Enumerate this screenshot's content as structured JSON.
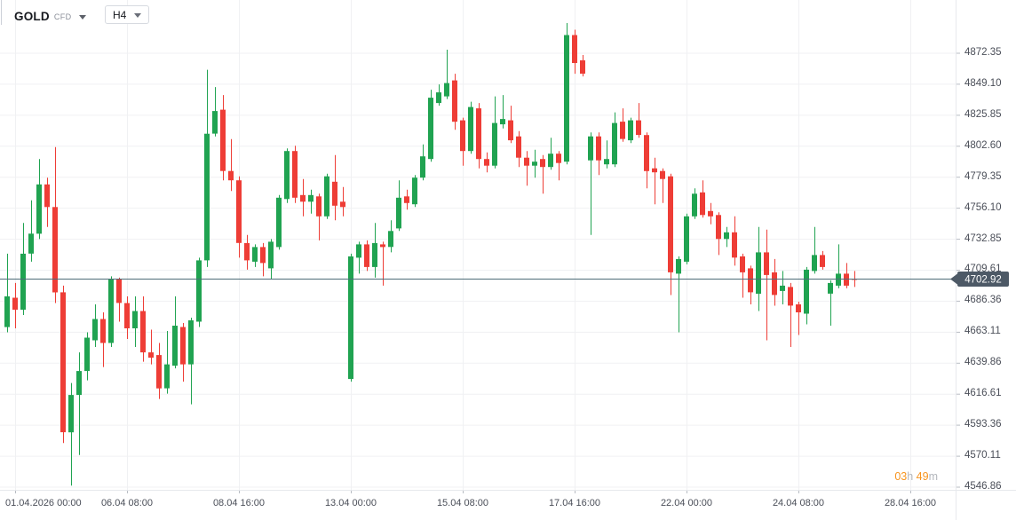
{
  "header": {
    "symbol": "GOLD",
    "instrument_type": "CFD",
    "timeframe": "H4"
  },
  "countdown": {
    "hours": "03",
    "hours_unit": "h",
    "minutes": "49",
    "minutes_unit": "m"
  },
  "colors": {
    "up": "#20a351",
    "down": "#ee3d36",
    "grid": "#f0f1f3",
    "axis_tick": "#b8bcc3",
    "separator": "#e7e9ed",
    "axis_text": "#4a4e58",
    "price_line": "#4d6b78",
    "badge_bg": "#4d5966",
    "badge_text": "#ffffff",
    "countdown_accent": "#f7941e",
    "countdown_unit": "#b4b7bd",
    "background": "#ffffff"
  },
  "price_axis": {
    "current_price_label": "4702.92"
  },
  "chart_data": {
    "type": "candlestick",
    "title": "GOLD CFD H4",
    "symbol": "GOLD",
    "timeframe": "H4",
    "ylim": [
      4546.86,
      4872.35
    ],
    "y_tick_step": 23.25,
    "grid": true,
    "y_ticks": [
      4872.35,
      4849.1,
      4825.85,
      4802.6,
      4779.35,
      4756.1,
      4732.85,
      4709.61,
      4686.36,
      4663.11,
      4639.86,
      4616.61,
      4593.36,
      4570.11,
      4546.86
    ],
    "x_labels": [
      {
        "text": "01.04.2026 00:00",
        "index": 1
      },
      {
        "text": "06.04 08:00",
        "index": 15
      },
      {
        "text": "08.04 16:00",
        "index": 29
      },
      {
        "text": "13.04 00:00",
        "index": 43
      },
      {
        "text": "15.04 08:00",
        "index": 57
      },
      {
        "text": "17.04 16:00",
        "index": 71
      },
      {
        "text": "22.04 00:00",
        "index": 85
      },
      {
        "text": "24.04 08:00",
        "index": 99
      },
      {
        "text": "28.04 16:00",
        "index": 113
      }
    ],
    "current_price": 4702.92,
    "columns": "[open, high, low, close]",
    "candles": [
      [
        4667,
        4722,
        4663,
        4690
      ],
      [
        4689,
        4700,
        4666,
        4680
      ],
      [
        4680,
        4745,
        4676,
        4722
      ],
      [
        4722,
        4762,
        4716,
        4737
      ],
      [
        4737,
        4793,
        4733,
        4774
      ],
      [
        4774,
        4779,
        4742,
        4757
      ],
      [
        4757,
        4802,
        4685,
        4693
      ],
      [
        4693,
        4698,
        4580,
        4588
      ],
      [
        4588,
        4625,
        4548,
        4616
      ],
      [
        4616,
        4648,
        4571,
        4634
      ],
      [
        4634,
        4663,
        4627,
        4659
      ],
      [
        4657,
        4684,
        4652,
        4673
      ],
      [
        4673,
        4678,
        4637,
        4655
      ],
      [
        4655,
        4705,
        4652,
        4703
      ],
      [
        4703,
        4704,
        4671,
        4685
      ],
      [
        4685,
        4690,
        4658,
        4666
      ],
      [
        4666,
        4690,
        4652,
        4679
      ],
      [
        4679,
        4690,
        4641,
        4648
      ],
      [
        4648,
        4665,
        4639,
        4644
      ],
      [
        4646,
        4655,
        4613,
        4621
      ],
      [
        4621,
        4664,
        4617,
        4639
      ],
      [
        4638,
        4690,
        4636,
        4668
      ],
      [
        4667,
        4670,
        4626,
        4639
      ],
      [
        4639,
        4674,
        4609,
        4672
      ],
      [
        4671,
        4719,
        4667,
        4717
      ],
      [
        4717,
        4860,
        4712,
        4812
      ],
      [
        4812,
        4847,
        4810,
        4829
      ],
      [
        4830,
        4841,
        4777,
        4784
      ],
      [
        4784,
        4808,
        4769,
        4777
      ],
      [
        4777,
        4780,
        4719,
        4730
      ],
      [
        4730,
        4736,
        4710,
        4717
      ],
      [
        4716,
        4729,
        4712,
        4727
      ],
      [
        4727,
        4730,
        4705,
        4715
      ],
      [
        4711,
        4733,
        4703,
        4731
      ],
      [
        4727,
        4766,
        4725,
        4764
      ],
      [
        4763,
        4801,
        4760,
        4799
      ],
      [
        4799,
        4803,
        4760,
        4764
      ],
      [
        4766,
        4778,
        4750,
        4761
      ],
      [
        4761,
        4770,
        4752,
        4766
      ],
      [
        4765,
        4767,
        4732,
        4750
      ],
      [
        4750,
        4782,
        4748,
        4780
      ],
      [
        4776,
        4796,
        4747,
        4758
      ],
      [
        4761,
        4772,
        4750,
        4757
      ],
      [
        4628,
        4722,
        4626,
        4720
      ],
      [
        4719,
        4731,
        4707,
        4729
      ],
      [
        4729,
        4732,
        4709,
        4712
      ],
      [
        4712,
        4745,
        4704,
        4730
      ],
      [
        4729,
        4731,
        4698,
        4727
      ],
      [
        4727,
        4747,
        4723,
        4739
      ],
      [
        4741,
        4777,
        4739,
        4764
      ],
      [
        4765,
        4770,
        4755,
        4760
      ],
      [
        4759,
        4781,
        4757,
        4779
      ],
      [
        4779,
        4804,
        4777,
        4795
      ],
      [
        4793,
        4845,
        4791,
        4839
      ],
      [
        4835,
        4849,
        4833,
        4843
      ],
      [
        4840,
        4875,
        4838,
        4850
      ],
      [
        4852,
        4857,
        4815,
        4821
      ],
      [
        4822,
        4824,
        4788,
        4799
      ],
      [
        4799,
        4836,
        4797,
        4832
      ],
      [
        4831,
        4835,
        4786,
        4793
      ],
      [
        4793,
        4798,
        4783,
        4788
      ],
      [
        4788,
        4840,
        4786,
        4820
      ],
      [
        4819,
        4841,
        4816,
        4823
      ],
      [
        4822,
        4833,
        4805,
        4807
      ],
      [
        4810,
        4814,
        4787,
        4794
      ],
      [
        4794,
        4799,
        4773,
        4788
      ],
      [
        4788,
        4800,
        4779,
        4791
      ],
      [
        4793,
        4796,
        4767,
        4787
      ],
      [
        4787,
        4809,
        4785,
        4797
      ],
      [
        4797,
        4799,
        4777,
        4790
      ],
      [
        4791,
        4895,
        4789,
        4886
      ],
      [
        4886,
        4890,
        4857,
        4865
      ],
      [
        4867,
        4871,
        4855,
        4857
      ],
      [
        4792,
        4813,
        4736,
        4810
      ],
      [
        4810,
        4813,
        4781,
        4792
      ],
      [
        4789,
        4807,
        4786,
        4793
      ],
      [
        4789,
        4828,
        4787,
        4820
      ],
      [
        4821,
        4831,
        4806,
        4808
      ],
      [
        4807,
        4824,
        4805,
        4822
      ],
      [
        4822,
        4835,
        4809,
        4811
      ],
      [
        4811,
        4813,
        4771,
        4784
      ],
      [
        4786,
        4794,
        4759,
        4783
      ],
      [
        4784,
        4786,
        4760,
        4778
      ],
      [
        4780,
        4782,
        4691,
        4708
      ],
      [
        4707,
        4720,
        4663,
        4718
      ],
      [
        4716,
        4752,
        4714,
        4750
      ],
      [
        4750,
        4771,
        4748,
        4767
      ],
      [
        4768,
        4777,
        4749,
        4751
      ],
      [
        4754,
        4760,
        4744,
        4750
      ],
      [
        4751,
        4753,
        4721,
        4733
      ],
      [
        4733,
        4742,
        4727,
        4738
      ],
      [
        4738,
        4750,
        4713,
        4719
      ],
      [
        4720,
        4722,
        4689,
        4708
      ],
      [
        4711,
        4713,
        4684,
        4693
      ],
      [
        4692,
        4742,
        4679,
        4723
      ],
      [
        4723,
        4740,
        4657,
        4706
      ],
      [
        4708,
        4718,
        4683,
        4691
      ],
      [
        4694,
        4709,
        4684,
        4698
      ],
      [
        4697,
        4700,
        4652,
        4683
      ],
      [
        4684,
        4686,
        4661,
        4678
      ],
      [
        4677,
        4712,
        4669,
        4710
      ],
      [
        4709,
        4742,
        4707,
        4721
      ],
      [
        4721,
        4724,
        4710,
        4712
      ],
      [
        4692,
        4702,
        4668,
        4700
      ],
      [
        4698,
        4729,
        4696,
        4707
      ],
      [
        4707,
        4715,
        4696,
        4698
      ],
      [
        4703,
        4709,
        4697,
        4702.92
      ]
    ]
  }
}
